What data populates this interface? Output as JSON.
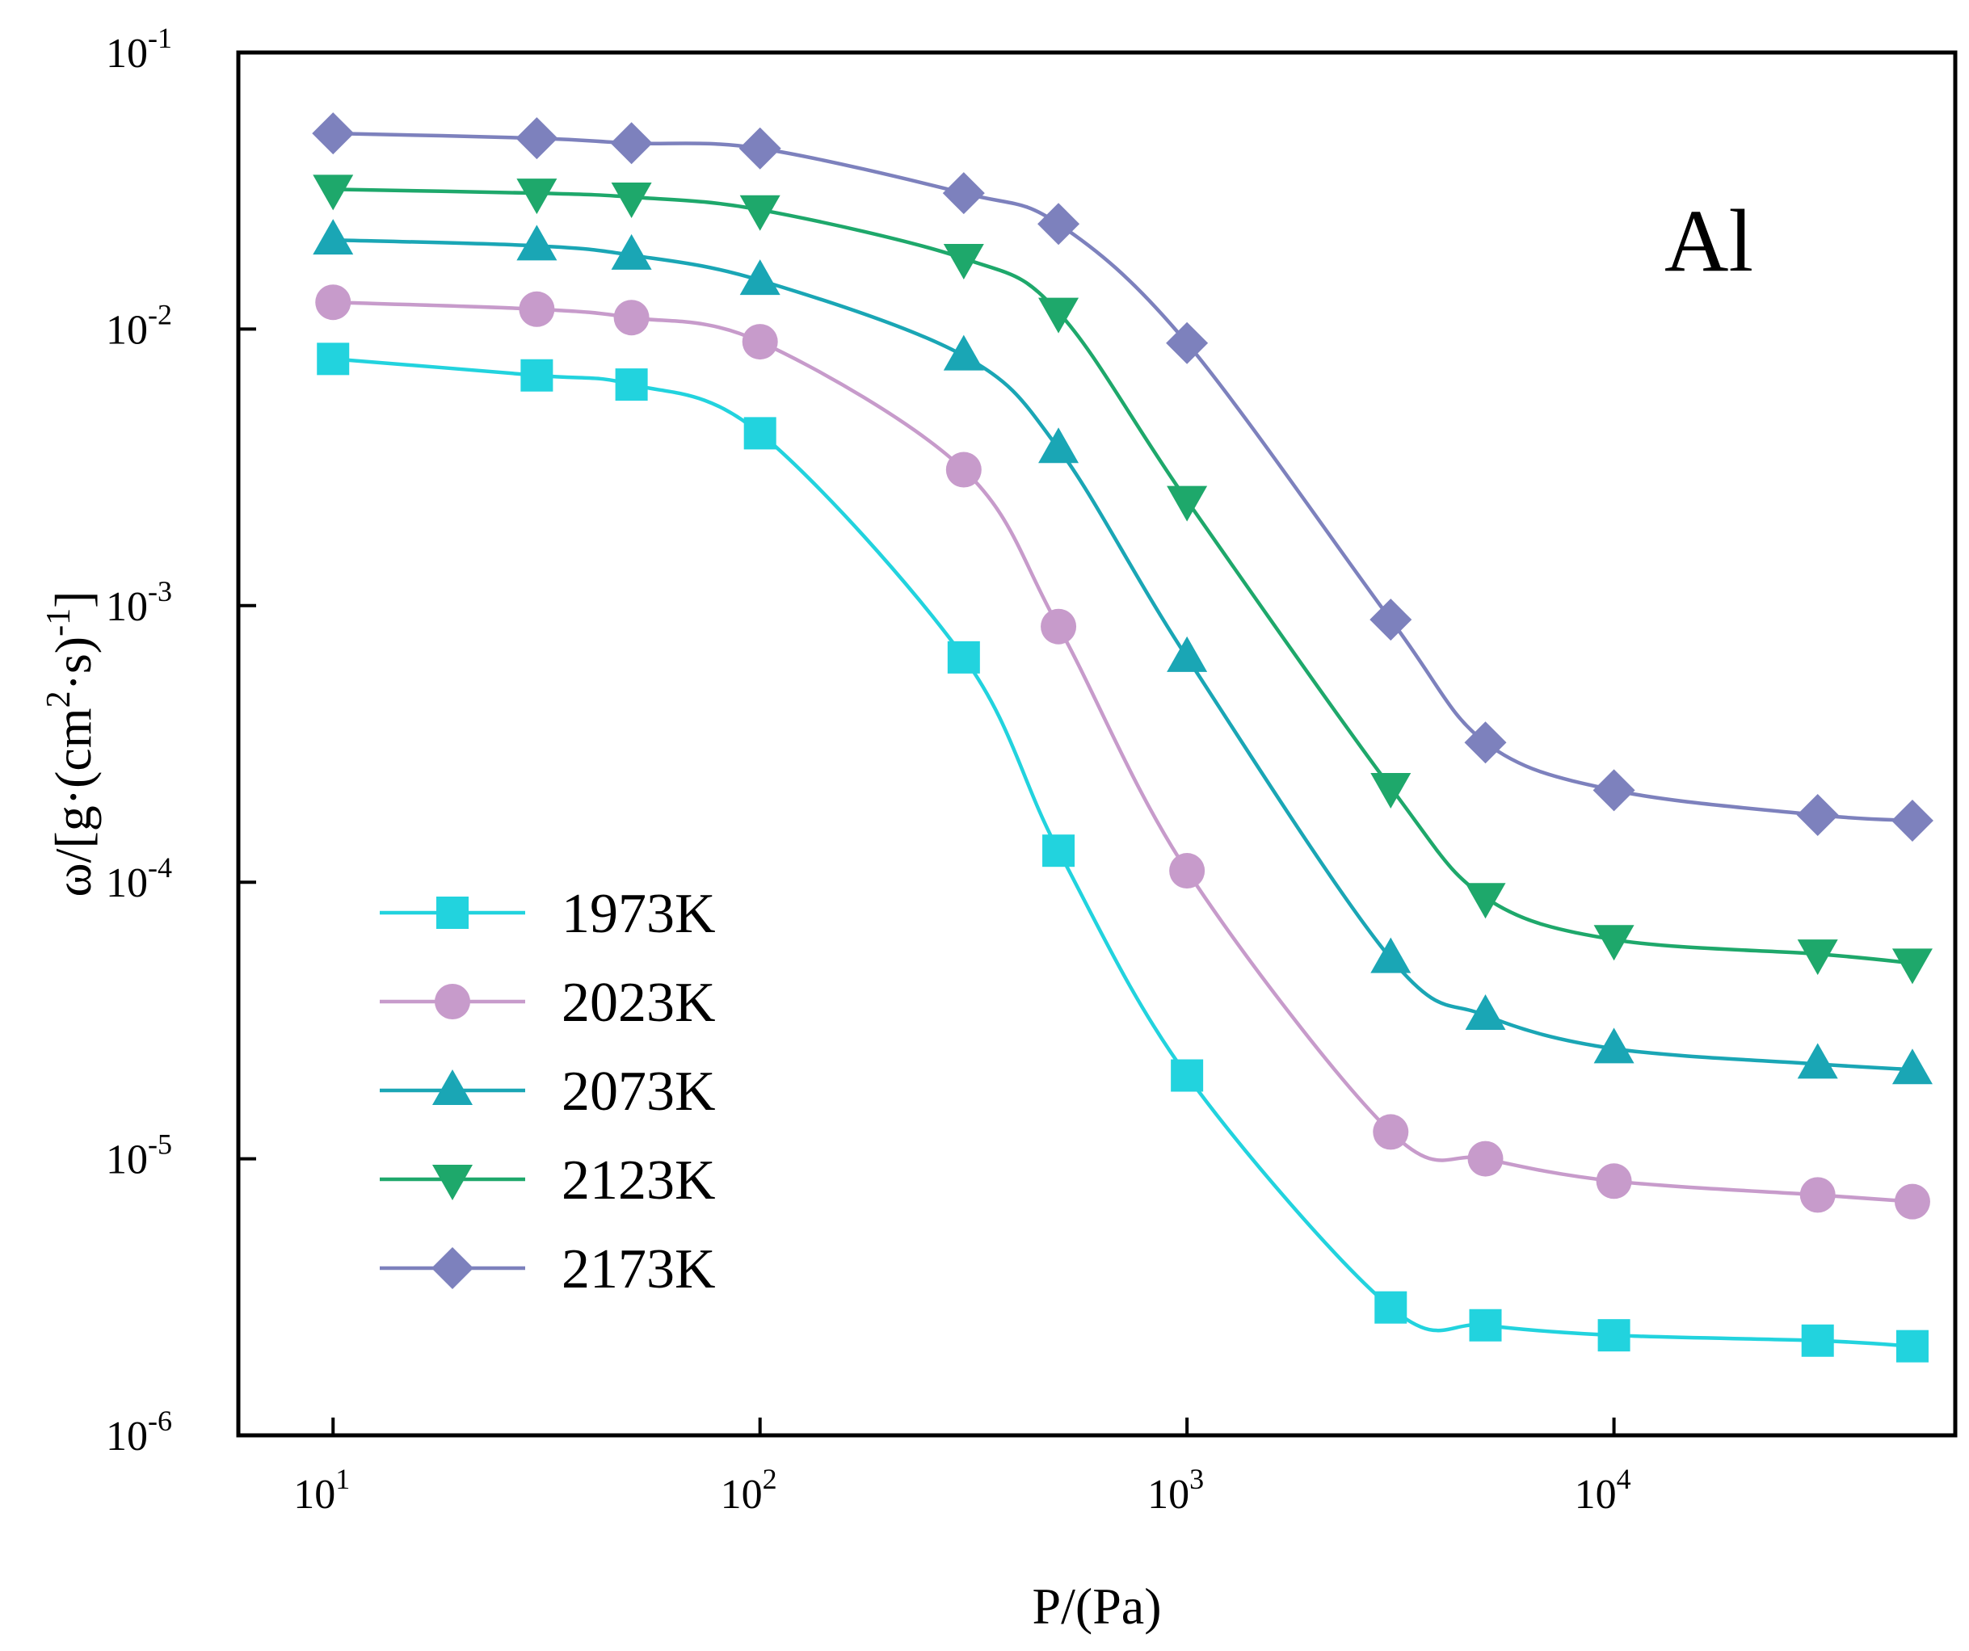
{
  "chart_data": {
    "type": "line",
    "annotation": "Al",
    "xlabel": "P/(Pa)",
    "ylabel_parts": [
      "ω/[g·(cm",
      "2",
      "·s)",
      "-1",
      "]"
    ],
    "xscale": "log",
    "yscale": "log",
    "xlim": [
      6,
      63000
    ],
    "ylim": [
      1e-06,
      0.1
    ],
    "x_ticks": [
      {
        "base": "10",
        "exp": "1",
        "value": 10
      },
      {
        "base": "10",
        "exp": "2",
        "value": 100
      },
      {
        "base": "10",
        "exp": "3",
        "value": 1000
      },
      {
        "base": "10",
        "exp": "4",
        "value": 10000
      }
    ],
    "y_ticks": [
      {
        "base": "10",
        "exp": "-6",
        "value": 1e-06
      },
      {
        "base": "10",
        "exp": "-5",
        "value": 1e-05
      },
      {
        "base": "10",
        "exp": "-4",
        "value": 0.0001
      },
      {
        "base": "10",
        "exp": "-3",
        "value": 0.001
      },
      {
        "base": "10",
        "exp": "-2",
        "value": 0.01
      },
      {
        "base": "10",
        "exp": "-1",
        "value": 0.1
      }
    ],
    "legend_position": "bottom-left",
    "x": [
      10,
      30,
      50,
      100,
      300,
      500,
      1000,
      3000,
      5000,
      10000,
      30000,
      50000
    ],
    "series": [
      {
        "name": "1973K",
        "color": "#22d3de",
        "marker": "square",
        "values": [
          0.0078,
          0.0068,
          0.0063,
          0.0042,
          0.00065,
          0.00013,
          2e-05,
          2.9e-06,
          2.5e-06,
          2.3e-06,
          2.2e-06,
          2.1e-06
        ]
      },
      {
        "name": "2023K",
        "color": "#c79bcb",
        "marker": "circle",
        "values": [
          0.0125,
          0.0118,
          0.011,
          0.009,
          0.0031,
          0.00084,
          0.00011,
          1.25e-05,
          1e-05,
          8.3e-06,
          7.4e-06,
          7e-06
        ]
      },
      {
        "name": "2073K",
        "color": "#1aa6b5",
        "marker": "triangle-up",
        "values": [
          0.021,
          0.02,
          0.0185,
          0.015,
          0.008,
          0.0037,
          0.00065,
          5.3e-05,
          3.3e-05,
          2.5e-05,
          2.2e-05,
          2.1e-05
        ]
      },
      {
        "name": "2123K",
        "color": "#1ea86b",
        "marker": "triangle-down",
        "values": [
          0.032,
          0.031,
          0.03,
          0.027,
          0.018,
          0.0115,
          0.0024,
          0.00022,
          8.8e-05,
          6.2e-05,
          5.5e-05,
          5.1e-05
        ]
      },
      {
        "name": "2173K",
        "color": "#7d81bd",
        "marker": "diamond",
        "values": [
          0.051,
          0.049,
          0.047,
          0.045,
          0.031,
          0.024,
          0.0089,
          0.00089,
          0.00032,
          0.000215,
          0.000175,
          0.000167
        ]
      }
    ]
  }
}
